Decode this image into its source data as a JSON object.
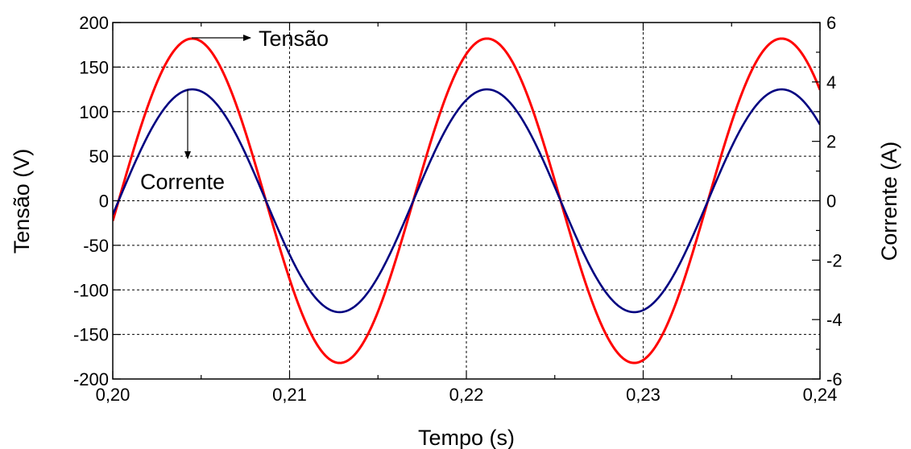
{
  "chart_data": {
    "type": "line",
    "xlabel": "Tempo (s)",
    "ylabel_left": "Tensão (V)",
    "ylabel_right": "Corrente (A)",
    "xlim": [
      0.2,
      0.24
    ],
    "ylim_left": [
      -200,
      200
    ],
    "ylim_right": [
      -6,
      6
    ],
    "x_ticks": [
      0.2,
      0.21,
      0.22,
      0.23,
      0.24
    ],
    "x_tick_labels": [
      "0,20",
      "0,21",
      "0,22",
      "0,23",
      "0,24"
    ],
    "y_left_ticks": [
      200,
      150,
      100,
      50,
      0,
      -50,
      -100,
      -150,
      -200
    ],
    "y_left_tick_labels": [
      "200",
      "150",
      "100",
      "50",
      "0",
      "-50",
      "-100",
      "-150",
      "-200"
    ],
    "y_right_ticks": [
      6,
      4,
      2,
      0,
      -2,
      -4,
      -6
    ],
    "y_right_tick_labels": [
      "6",
      "4",
      "2",
      "0",
      "-2",
      "-4",
      "-6"
    ],
    "grid": true,
    "frequency_hz": 60,
    "series": [
      {
        "name": "Tensão",
        "axis": "left",
        "color": "#ff0000",
        "amplitude": 182,
        "zero_crossing_x": 0.20033
      },
      {
        "name": "Corrente",
        "axis": "right",
        "color": "#000080",
        "amplitude": 3.75,
        "zero_crossing_x": 0.20033
      }
    ],
    "annotations": [
      {
        "text": "Tensão",
        "points_to": "Tensão",
        "arrow_direction": "right"
      },
      {
        "text": "Corrente",
        "points_to": "Corrente",
        "arrow_direction": "down"
      }
    ]
  }
}
